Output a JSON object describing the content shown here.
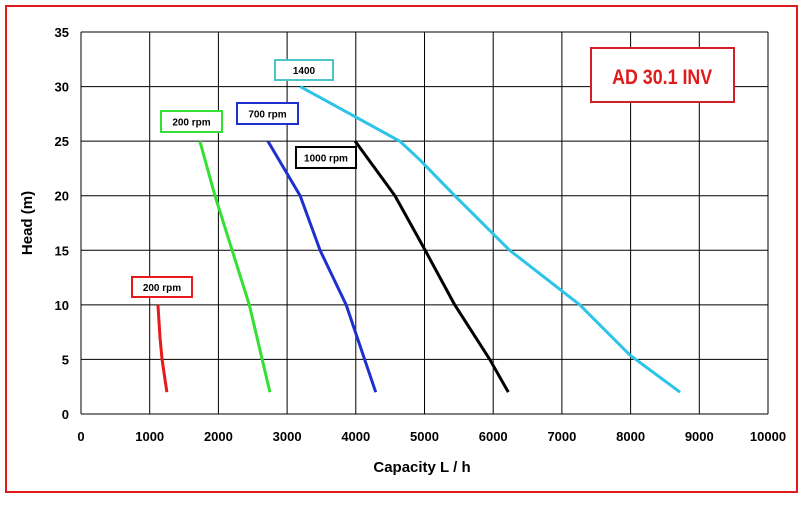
{
  "chart_data": {
    "type": "line",
    "title": "AD 30.1 INV",
    "xlabel": "Capacity  L / h",
    "ylabel": "Head (m)",
    "xlim": [
      0,
      10000
    ],
    "ylim": [
      0,
      35
    ],
    "xticks": [
      0,
      1000,
      2000,
      3000,
      4000,
      5000,
      6000,
      7000,
      8000,
      9000,
      10000
    ],
    "yticks": [
      0,
      5,
      10,
      15,
      20,
      25,
      30,
      35
    ],
    "grid": true,
    "series": [
      {
        "name": "200  rpm",
        "color": "#e51b1b",
        "points": [
          [
            1120,
            10
          ],
          [
            1150,
            7
          ],
          [
            1180,
            5
          ],
          [
            1250,
            2
          ]
        ]
      },
      {
        "name": "200  rpm",
        "color": "#33e033",
        "points": [
          [
            1730,
            25
          ],
          [
            1950,
            20
          ],
          [
            2200,
            15
          ],
          [
            2450,
            10
          ],
          [
            2750,
            2
          ]
        ]
      },
      {
        "name": "700  rpm",
        "color": "#1f2fd0",
        "points": [
          [
            2720,
            25
          ],
          [
            3190,
            20
          ],
          [
            3480,
            15
          ],
          [
            3860,
            10
          ],
          [
            4290,
            2
          ]
        ]
      },
      {
        "name": "1000  rpm",
        "color": "#000000",
        "points": [
          [
            3990,
            25
          ],
          [
            4570,
            20
          ],
          [
            5010,
            15
          ],
          [
            5440,
            10
          ],
          [
            5950,
            5
          ],
          [
            6220,
            2
          ]
        ]
      },
      {
        "name": "1400",
        "color": "#2cc4e8",
        "points": [
          [
            3190,
            30
          ],
          [
            4640,
            25
          ],
          [
            4930,
            23.3
          ],
          [
            5440,
            20
          ],
          [
            6240,
            15
          ],
          [
            7260,
            10
          ],
          [
            7990,
            5.4
          ],
          [
            8720,
            2
          ]
        ]
      }
    ]
  }
}
